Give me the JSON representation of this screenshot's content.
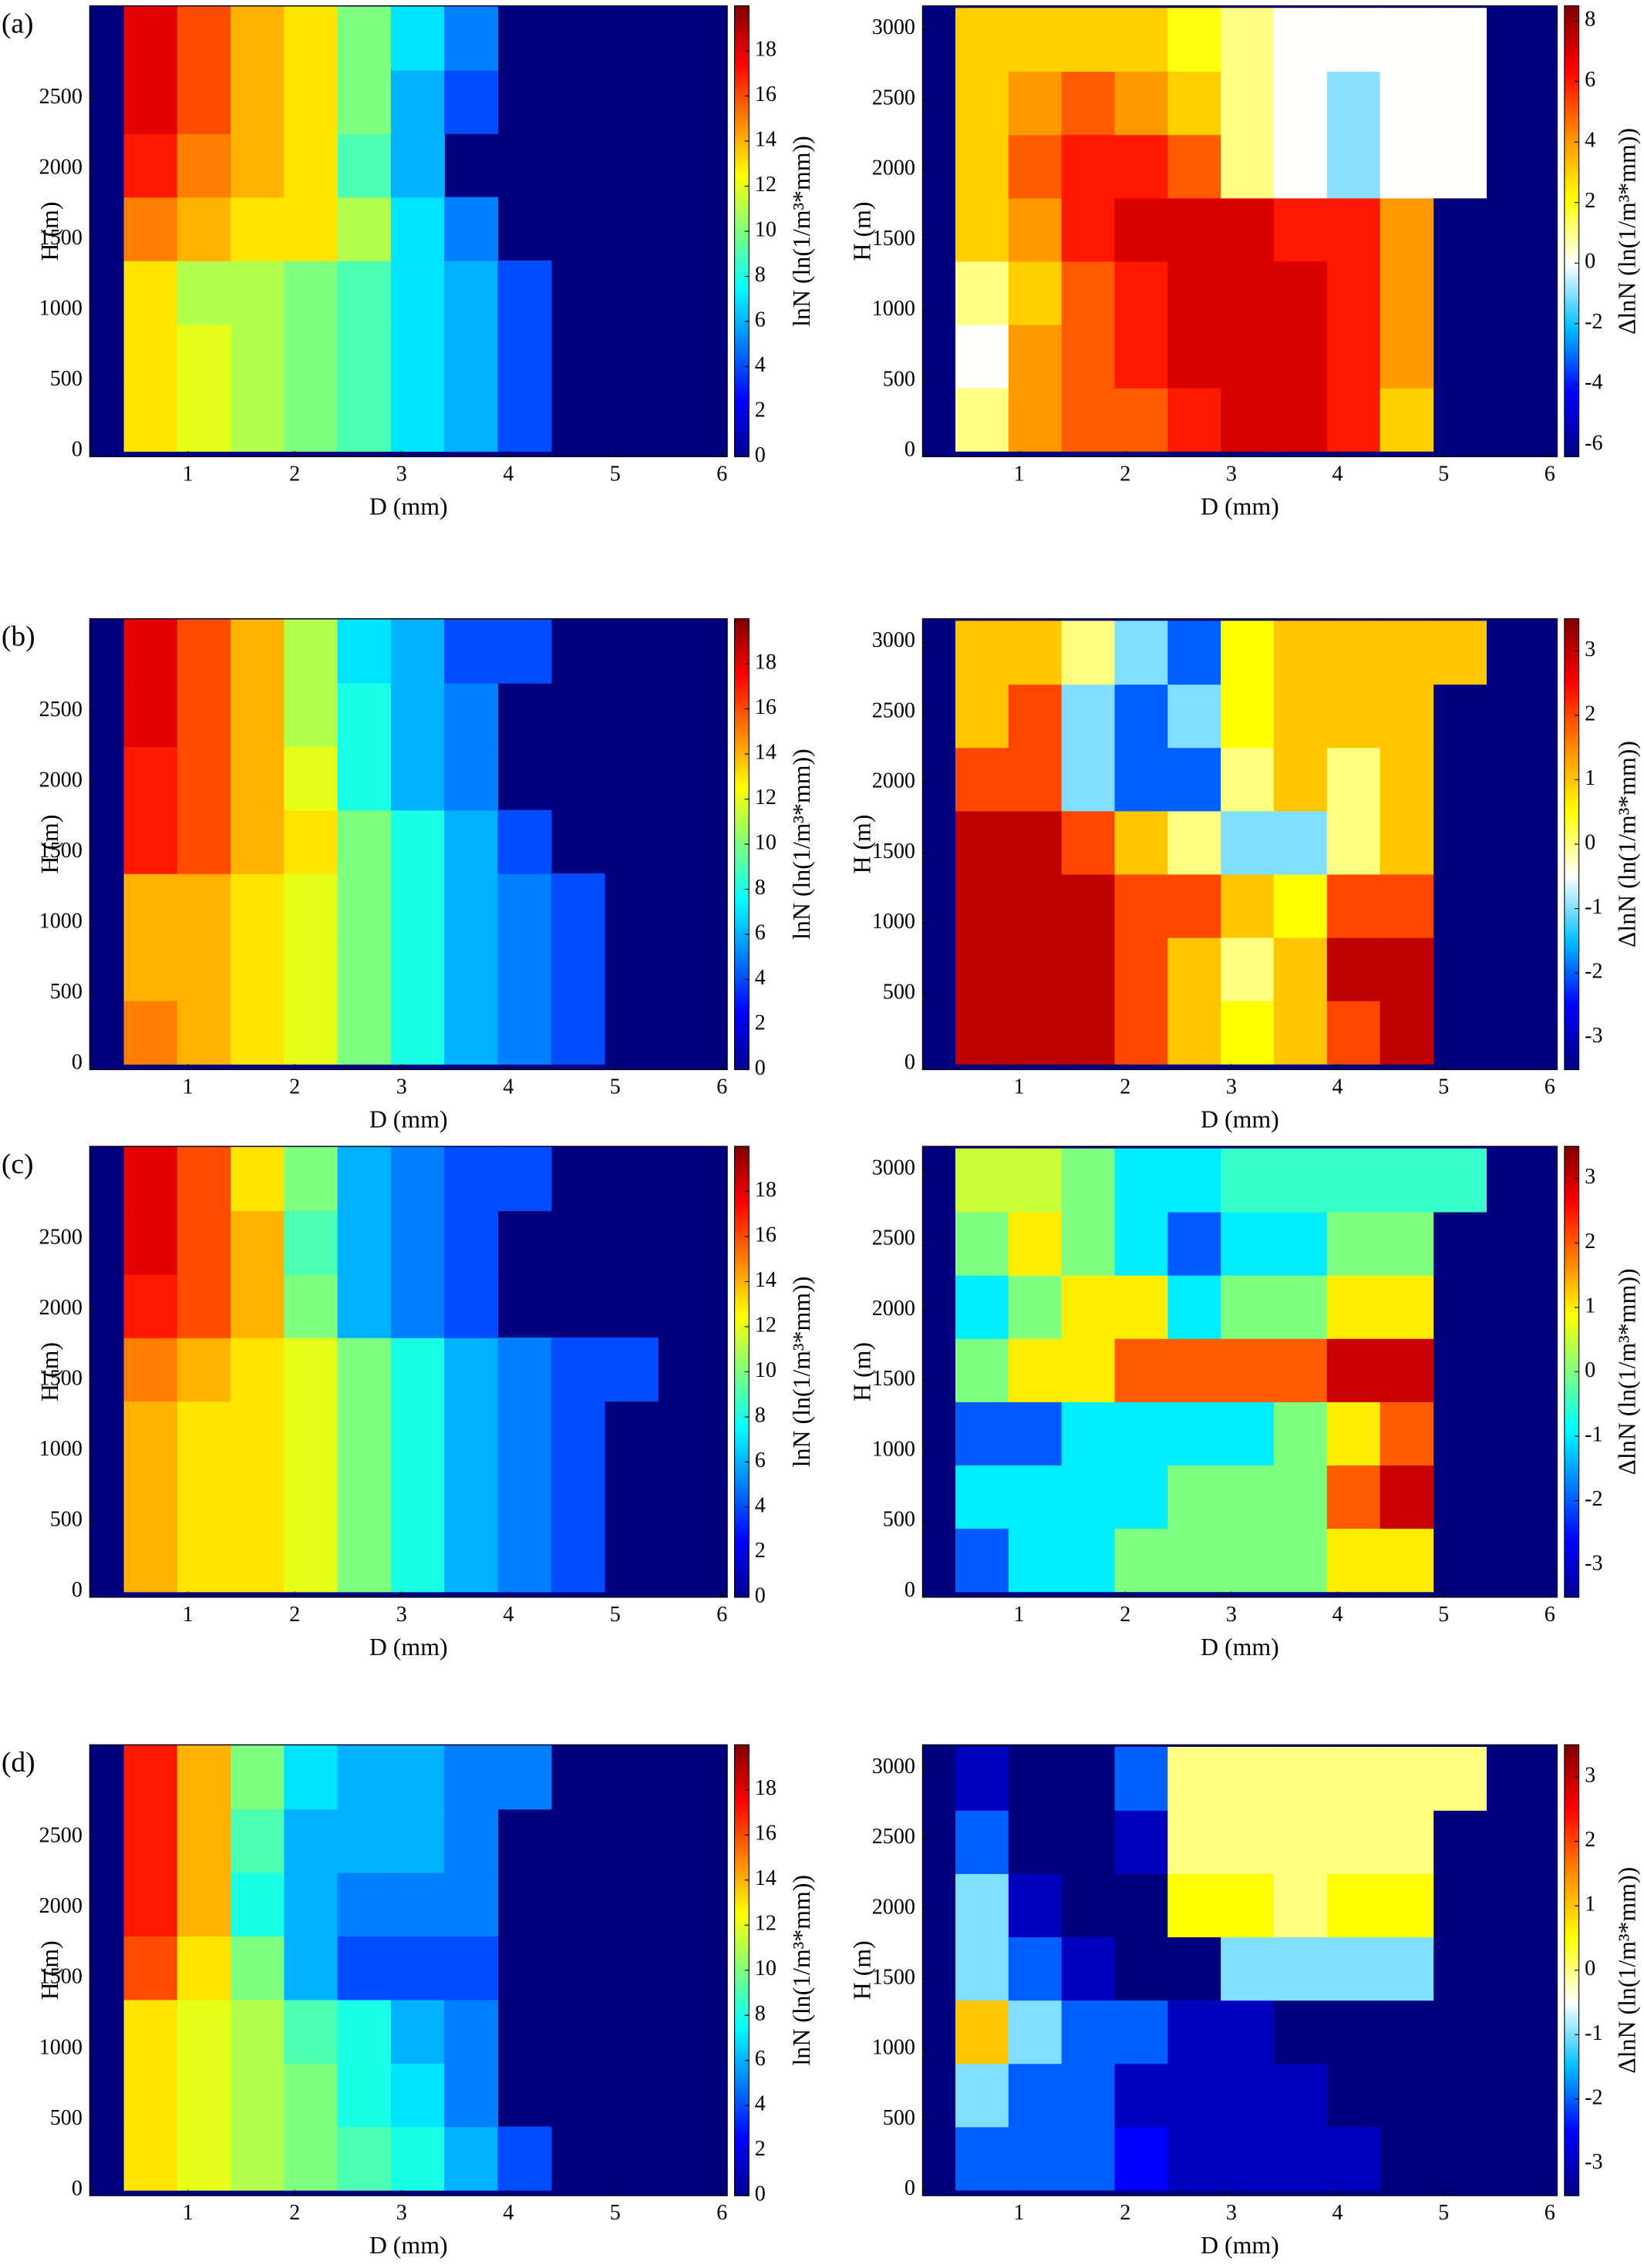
{
  "chart_data": [
    {
      "type": "heatmap",
      "panel_label": "(a)",
      "xlabel": "D (mm)",
      "ylabel": "H (m)",
      "colorbar_label": "lnN (ln(1/m³*mm))",
      "xlim": [
        0.08,
        6.05
      ],
      "ylim": [
        -40,
        3155
      ],
      "xticks": [
        1,
        2,
        3,
        4,
        5,
        6
      ],
      "yticks": [
        0,
        500,
        1000,
        1500,
        2000,
        2500
      ],
      "clim": [
        0,
        20
      ],
      "cticks": [
        0,
        2,
        4,
        6,
        8,
        10,
        12,
        14,
        16,
        18
      ],
      "colorscale": [
        "#00008f",
        "#0000ff",
        "#007fff",
        "#00ffff",
        "#7fff7f",
        "#ffff00",
        "#ff7f00",
        "#ff0000",
        "#7f0000"
      ],
      "background": "#00007f",
      "xbins": [
        0.4,
        0.9,
        1.4,
        1.9,
        2.4,
        2.9,
        3.4,
        3.9,
        4.4,
        4.9,
        5.4
      ],
      "ybins": [
        0,
        450,
        900,
        1350,
        1800,
        2250,
        2700,
        3150
      ],
      "values": [
        [
          13,
          12,
          11,
          10,
          9,
          7,
          6,
          4,
          null,
          null
        ],
        [
          13,
          12,
          11,
          10,
          9,
          7,
          6,
          4,
          null,
          null
        ],
        [
          13,
          11,
          11,
          10,
          9,
          7,
          6,
          4,
          null,
          null
        ],
        [
          15,
          14,
          13,
          13,
          11,
          7,
          5,
          null,
          null,
          null
        ],
        [
          17,
          15,
          14,
          13,
          9,
          6,
          null,
          null,
          null,
          null
        ],
        [
          18,
          16,
          14,
          13,
          10,
          6,
          4,
          null,
          null,
          null
        ],
        [
          18,
          16,
          14,
          13,
          10,
          7,
          5,
          null,
          null,
          null
        ]
      ]
    },
    {
      "type": "heatmap",
      "xlabel": "D (mm)",
      "ylabel": "H (m)",
      "colorbar_label": "ΔlnN (ln(1/m³*mm))",
      "xlim": [
        0.09,
        6.07
      ],
      "ylim": [
        -41,
        3165
      ],
      "xticks": [
        1,
        2,
        3,
        4,
        5,
        6
      ],
      "yticks": [
        0,
        500,
        1000,
        1500,
        2000,
        2500,
        3000
      ],
      "clim": [
        -6.4,
        8.5
      ],
      "cticks": [
        -6,
        -4,
        -2,
        0,
        2,
        4,
        6,
        8
      ],
      "colorscale": [
        "#00007f",
        "#0000ff",
        "#00bfff",
        "#ffffff",
        "#ffff00",
        "#ff8c00",
        "#ff0000",
        "#7f0000"
      ],
      "background": "#00007f",
      "xbins": [
        0.4,
        0.9,
        1.4,
        1.9,
        2.4,
        2.9,
        3.4,
        3.9,
        4.4,
        4.9,
        5.4
      ],
      "ybins": [
        0,
        450,
        900,
        1350,
        1800,
        2250,
        2700,
        3150
      ],
      "values": [
        [
          1,
          4,
          5,
          5,
          6,
          7,
          7,
          6,
          3,
          null
        ],
        [
          0,
          4,
          5,
          6,
          7,
          7,
          7,
          6,
          4,
          null
        ],
        [
          1,
          3,
          5,
          6,
          7,
          7,
          7,
          6,
          4,
          null
        ],
        [
          3,
          4,
          6,
          7,
          7,
          7,
          6,
          6,
          4,
          null
        ],
        [
          3,
          5,
          6,
          6,
          5,
          1,
          0,
          -1,
          0,
          0
        ],
        [
          3,
          4,
          5,
          4,
          3,
          1,
          0,
          -1,
          0,
          0
        ],
        [
          3,
          3,
          3,
          3,
          2,
          1,
          0,
          0,
          0,
          0
        ]
      ]
    },
    {
      "type": "heatmap",
      "panel_label": "(b)",
      "xlabel": "D (mm)",
      "ylabel": "H (m)",
      "colorbar_label": "lnN (ln(1/m³*mm))",
      "xlim": [
        0.08,
        6.05
      ],
      "ylim": [
        -40,
        3155
      ],
      "xticks": [
        1,
        2,
        3,
        4,
        5,
        6
      ],
      "yticks": [
        0,
        500,
        1000,
        1500,
        2000,
        2500
      ],
      "clim": [
        0,
        20
      ],
      "cticks": [
        0,
        2,
        4,
        6,
        8,
        10,
        12,
        14,
        16,
        18
      ],
      "colorscale": [
        "#00008f",
        "#0000ff",
        "#007fff",
        "#00ffff",
        "#7fff7f",
        "#ffff00",
        "#ff7f00",
        "#ff0000",
        "#7f0000"
      ],
      "background": "#00007f",
      "xbins": [
        0.4,
        0.9,
        1.4,
        1.9,
        2.4,
        2.9,
        3.4,
        3.9,
        4.4,
        4.9,
        5.4
      ],
      "ybins": [
        0,
        450,
        900,
        1350,
        1800,
        2250,
        2700,
        3150
      ],
      "values": [
        [
          15,
          14,
          13,
          12,
          10,
          8,
          6,
          5,
          4,
          null
        ],
        [
          14,
          14,
          13,
          12,
          10,
          8,
          6,
          5,
          4,
          null
        ],
        [
          14,
          14,
          13,
          12,
          10,
          8,
          6,
          5,
          4,
          null
        ],
        [
          17,
          16,
          14,
          13,
          10,
          8,
          6,
          4,
          null,
          null
        ],
        [
          17,
          16,
          14,
          12,
          8,
          6,
          5,
          null,
          null,
          null
        ],
        [
          18,
          16,
          14,
          11,
          8,
          6,
          5,
          null,
          null,
          null
        ],
        [
          18,
          16,
          14,
          11,
          7,
          6,
          4,
          4,
          null,
          null
        ]
      ]
    },
    {
      "type": "heatmap",
      "xlabel": "D (mm)",
      "ylabel": "H (m)",
      "colorbar_label": "ΔlnN (ln(1/m³*mm))",
      "xlim": [
        0.09,
        6.07
      ],
      "ylim": [
        -41,
        3165
      ],
      "xticks": [
        1,
        2,
        3,
        4,
        5,
        6
      ],
      "yticks": [
        0,
        500,
        1000,
        1500,
        2000,
        2500,
        3000
      ],
      "clim": [
        -3.5,
        3.5
      ],
      "cticks": [
        -3,
        -2,
        -1,
        0,
        1,
        2,
        3
      ],
      "colorscale": [
        "#00007f",
        "#0000ff",
        "#00bfff",
        "#ffffff",
        "#ffff00",
        "#ff8c00",
        "#ff0000",
        "#7f0000"
      ],
      "background": "#00007f",
      "xbins": [
        0.4,
        0.9,
        1.4,
        1.9,
        2.4,
        2.9,
        3.4,
        3.9,
        4.4,
        4.9,
        5.4
      ],
      "ybins": [
        0,
        450,
        900,
        1350,
        1800,
        2250,
        2700,
        3150
      ],
      "values": [
        [
          3,
          3,
          3,
          2,
          1,
          0.5,
          1,
          2,
          3,
          null
        ],
        [
          3,
          3,
          3,
          2,
          1,
          0,
          1,
          3,
          3,
          null
        ],
        [
          3,
          3,
          3,
          2,
          2,
          1,
          0.5,
          2,
          2,
          null
        ],
        [
          3,
          3,
          2,
          1,
          0,
          -1,
          -1,
          0,
          1,
          null
        ],
        [
          2,
          2,
          -1,
          -2,
          -2,
          0,
          1,
          0,
          1,
          null
        ],
        [
          1,
          2,
          -1,
          -2,
          -1,
          0.5,
          1,
          1,
          1,
          null
        ],
        [
          1,
          1,
          0,
          -1,
          -2,
          0.5,
          1,
          1,
          1,
          1
        ]
      ]
    },
    {
      "type": "heatmap",
      "panel_label": "(c)",
      "xlabel": "D (mm)",
      "ylabel": "H (m)",
      "colorbar_label": "lnN (ln(1/m³*mm))",
      "xlim": [
        0.08,
        6.05
      ],
      "ylim": [
        -40,
        3155
      ],
      "xticks": [
        1,
        2,
        3,
        4,
        5,
        6
      ],
      "yticks": [
        0,
        500,
        1000,
        1500,
        2000,
        2500
      ],
      "clim": [
        0,
        20
      ],
      "cticks": [
        0,
        2,
        4,
        6,
        8,
        10,
        12,
        14,
        16,
        18
      ],
      "colorscale": [
        "#00008f",
        "#0000ff",
        "#007fff",
        "#00ffff",
        "#7fff7f",
        "#ffff00",
        "#ff7f00",
        "#ff0000",
        "#7f0000"
      ],
      "background": "#00007f",
      "xbins": [
        0.4,
        0.9,
        1.4,
        1.9,
        2.4,
        2.9,
        3.4,
        3.9,
        4.4,
        4.9,
        5.4
      ],
      "ybins": [
        0,
        450,
        900,
        1350,
        1800,
        2250,
        2700,
        3150
      ],
      "values": [
        [
          14,
          13,
          13,
          12,
          10,
          8,
          6,
          5,
          4,
          null
        ],
        [
          14,
          13,
          13,
          12,
          10,
          8,
          6,
          5,
          4,
          null
        ],
        [
          14,
          13,
          13,
          12,
          10,
          8,
          6,
          5,
          4,
          null
        ],
        [
          15,
          14,
          13,
          12,
          10,
          8,
          6,
          5,
          4,
          4
        ],
        [
          17,
          16,
          14,
          10,
          6,
          5,
          4,
          null,
          null,
          null
        ],
        [
          18,
          16,
          14,
          9,
          6,
          5,
          4,
          null,
          null,
          null
        ],
        [
          18,
          16,
          13,
          10,
          6,
          5,
          4,
          4,
          null,
          null
        ]
      ]
    },
    {
      "type": "heatmap",
      "xlabel": "D (mm)",
      "ylabel": "H (m)",
      "colorbar_label": "ΔlnN (ln(1/m³*mm))",
      "xlim": [
        0.09,
        6.07
      ],
      "ylim": [
        -41,
        3165
      ],
      "xticks": [
        1,
        2,
        3,
        4,
        5,
        6
      ],
      "yticks": [
        0,
        500,
        1000,
        1500,
        2000,
        2500,
        3000
      ],
      "clim": [
        -3.5,
        3.5
      ],
      "cticks": [
        -3,
        -2,
        -1,
        0,
        1,
        2,
        3
      ],
      "colorscale": [
        "#00008f",
        "#0000ff",
        "#007fff",
        "#00ffff",
        "#7fff7f",
        "#ffff00",
        "#ff7f00",
        "#ff0000",
        "#7f0000"
      ],
      "background": "#00007f",
      "xbins": [
        0.4,
        0.9,
        1.4,
        1.9,
        2.4,
        2.9,
        3.4,
        3.9,
        4.4,
        4.9,
        5.4
      ],
      "ybins": [
        0,
        450,
        900,
        1350,
        1800,
        2250,
        2700,
        3150
      ],
      "values": [
        [
          -2,
          -1,
          -1,
          0,
          0,
          0,
          0,
          1,
          1,
          null
        ],
        [
          -1,
          -1,
          -1,
          -1,
          0,
          0,
          0,
          2,
          3,
          null
        ],
        [
          -2,
          -2,
          -1,
          -1,
          -1,
          -1,
          0,
          1,
          2,
          null
        ],
        [
          0,
          1,
          1,
          2,
          2,
          2,
          2,
          3,
          3,
          null
        ],
        [
          -1,
          0,
          1,
          1,
          -1,
          0,
          0,
          1,
          1,
          null
        ],
        [
          0,
          1,
          0,
          -1,
          -2,
          -1,
          -1,
          0,
          0,
          null
        ],
        [
          0.5,
          0.5,
          0,
          -1,
          -1,
          -0.5,
          -0.5,
          -0.5,
          -0.5,
          -0.5
        ]
      ]
    },
    {
      "type": "heatmap",
      "panel_label": "(d)",
      "xlabel": "D (mm)",
      "ylabel": "H (m)",
      "colorbar_label": "lnN (ln(1/m³*mm))",
      "xlim": [
        0.08,
        6.05
      ],
      "ylim": [
        -40,
        3155
      ],
      "xticks": [
        1,
        2,
        3,
        4,
        5,
        6
      ],
      "yticks": [
        0,
        500,
        1000,
        1500,
        2000,
        2500
      ],
      "clim": [
        0,
        20
      ],
      "cticks": [
        0,
        2,
        4,
        6,
        8,
        10,
        12,
        14,
        16,
        18
      ],
      "colorscale": [
        "#00008f",
        "#0000ff",
        "#007fff",
        "#00ffff",
        "#7fff7f",
        "#ffff00",
        "#ff7f00",
        "#ff0000",
        "#7f0000"
      ],
      "background": "#00007f",
      "xbins": [
        0.4,
        0.9,
        1.4,
        1.9,
        2.4,
        2.9,
        3.4,
        3.9,
        4.4,
        4.9,
        5.4
      ],
      "ybins": [
        0,
        450,
        900,
        1350,
        1800,
        2250,
        2700,
        3150
      ],
      "values": [
        [
          13,
          12,
          11,
          10,
          9,
          8,
          6,
          4,
          null,
          null
        ],
        [
          13,
          12,
          11,
          10,
          8,
          7,
          5,
          null,
          null,
          null
        ],
        [
          13,
          12,
          11,
          9,
          8,
          6,
          5,
          null,
          null,
          null
        ],
        [
          16,
          13,
          10,
          6,
          4,
          4,
          4,
          null,
          null,
          null
        ],
        [
          17,
          14,
          8,
          6,
          5,
          5,
          5,
          null,
          null,
          null
        ],
        [
          17,
          14,
          9,
          6,
          6,
          6,
          5,
          null,
          null,
          null
        ],
        [
          17,
          14,
          10,
          7,
          6,
          6,
          5,
          5,
          null,
          null
        ]
      ]
    },
    {
      "type": "heatmap",
      "xlabel": "D (mm)",
      "ylabel": "H (m)",
      "colorbar_label": "ΔlnN (ln(1/m³*mm))",
      "xlim": [
        0.09,
        6.07
      ],
      "ylim": [
        -41,
        3165
      ],
      "xticks": [
        1,
        2,
        3,
        4,
        5,
        6
      ],
      "yticks": [
        0,
        500,
        1000,
        1500,
        2000,
        2500,
        3000
      ],
      "clim": [
        -3.5,
        3.5
      ],
      "cticks": [
        -3,
        -2,
        -1,
        0,
        1,
        2,
        3
      ],
      "colorscale": [
        "#00007f",
        "#0000ff",
        "#00bfff",
        "#ffffff",
        "#ffff00",
        "#ff8c00",
        "#ff0000",
        "#7f0000"
      ],
      "background": "#00007f",
      "xbins": [
        0.4,
        0.9,
        1.4,
        1.9,
        2.4,
        2.9,
        3.4,
        3.9,
        4.4,
        4.9,
        5.4
      ],
      "ybins": [
        0,
        450,
        900,
        1350,
        1800,
        2250,
        2700,
        3150
      ],
      "values": [
        [
          -2,
          -2,
          -2,
          -2.5,
          -3,
          -3,
          -3,
          -3,
          null,
          null
        ],
        [
          -1,
          -2,
          -2,
          -3,
          -3,
          -3,
          -3,
          null,
          null,
          null
        ],
        [
          1,
          -1,
          -2,
          -2,
          -3,
          -3,
          -3.5,
          null,
          null,
          null
        ],
        [
          -1,
          -2,
          -3,
          -3.5,
          -3.5,
          -1,
          -1,
          -1,
          -1,
          null
        ],
        [
          -1,
          -3,
          -3.5,
          -3.5,
          0.5,
          0.5,
          0,
          0.5,
          0.5,
          null
        ],
        [
          -2,
          -3.5,
          -3.5,
          -3,
          0,
          0,
          0,
          0,
          0,
          null
        ],
        [
          -3,
          -3.5,
          -3.5,
          -2,
          0,
          0,
          0,
          0,
          0,
          0
        ]
      ]
    }
  ]
}
